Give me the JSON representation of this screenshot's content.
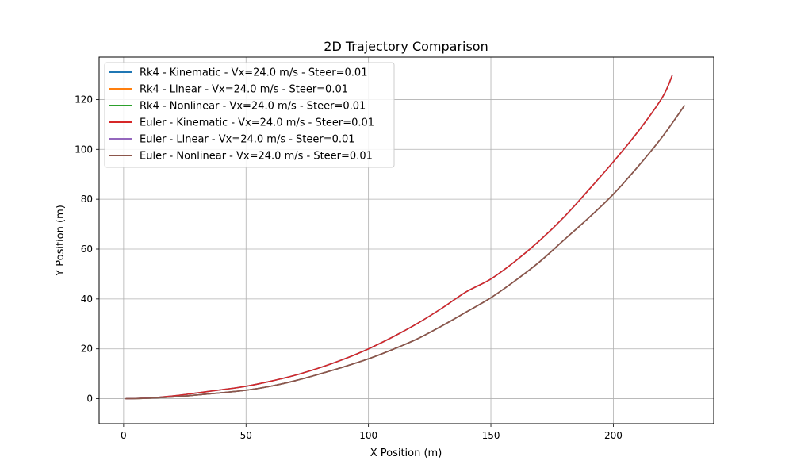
{
  "chart_data": {
    "type": "line",
    "title": "2D Trajectory Comparison",
    "xlabel": "X Position (m)",
    "ylabel": "Y Position (m)",
    "xlim": [
      -10,
      241
    ],
    "ylim": [
      -10,
      137
    ],
    "xticks": [
      0,
      50,
      100,
      150,
      200
    ],
    "yticks": [
      0,
      20,
      40,
      60,
      80,
      100,
      120
    ],
    "grid": true,
    "legend_position": "top-left",
    "series": [
      {
        "name": "Rk4 - Kinematic - Vx=24.0 m/s - Steer=0.01",
        "color": "#1f77b4",
        "x": [
          1,
          10,
          20,
          30,
          40,
          50,
          60,
          70,
          80,
          90,
          100,
          110,
          120,
          130,
          140,
          150,
          160,
          170,
          180,
          190,
          200,
          210,
          220,
          224
        ],
        "y": [
          0,
          0.3,
          1.1,
          2.3,
          3.6,
          5.0,
          7.0,
          9.4,
          12.4,
          15.9,
          20.0,
          24.8,
          30.2,
          36.3,
          42.9,
          48.0,
          55.2,
          63.5,
          73.0,
          83.8,
          95.0,
          107.0,
          120.8,
          129.5
        ]
      },
      {
        "name": "Rk4 - Linear - Vx=24.0 m/s - Steer=0.01",
        "color": "#ff7f0e",
        "x": [
          1,
          10,
          20,
          30,
          40,
          50,
          60,
          70,
          80,
          90,
          100,
          110,
          120,
          130,
          140,
          150,
          160,
          170,
          180,
          190,
          200,
          210,
          220,
          229
        ],
        "y": [
          0,
          0.2,
          0.7,
          1.5,
          2.4,
          3.4,
          5.0,
          7.2,
          9.9,
          12.8,
          16.0,
          19.8,
          24.0,
          29.2,
          34.8,
          40.5,
          47.4,
          55.0,
          63.8,
          72.6,
          82.0,
          93.0,
          105.0,
          117.5
        ]
      },
      {
        "name": "Rk4 - Nonlinear - Vx=24.0 m/s - Steer=0.01",
        "color": "#2ca02c",
        "x": [
          1,
          10,
          20,
          30,
          40,
          50,
          60,
          70,
          80,
          90,
          100,
          110,
          120,
          130,
          140,
          150,
          160,
          170,
          180,
          190,
          200,
          210,
          220,
          229
        ],
        "y": [
          0,
          0.2,
          0.7,
          1.5,
          2.4,
          3.4,
          5.0,
          7.2,
          9.9,
          12.8,
          16.0,
          19.8,
          24.0,
          29.2,
          34.8,
          40.5,
          47.4,
          55.0,
          63.8,
          72.6,
          82.0,
          93.0,
          105.0,
          117.5
        ]
      },
      {
        "name": "Euler - Kinematic - Vx=24.0 m/s - Steer=0.01",
        "color": "#d62728",
        "x": [
          1,
          10,
          20,
          30,
          40,
          50,
          60,
          70,
          80,
          90,
          100,
          110,
          120,
          130,
          140,
          150,
          160,
          170,
          180,
          190,
          200,
          210,
          220,
          224
        ],
        "y": [
          0,
          0.3,
          1.1,
          2.3,
          3.6,
          5.0,
          7.0,
          9.4,
          12.4,
          15.9,
          20.0,
          24.8,
          30.2,
          36.3,
          42.9,
          48.0,
          55.2,
          63.5,
          73.0,
          83.8,
          95.0,
          107.0,
          120.8,
          129.5
        ]
      },
      {
        "name": "Euler - Linear - Vx=24.0 m/s - Steer=0.01",
        "color": "#9467bd",
        "x": [
          1,
          10,
          20,
          30,
          40,
          50,
          60,
          70,
          80,
          90,
          100,
          110,
          120,
          130,
          140,
          150,
          160,
          170,
          180,
          190,
          200,
          210,
          220,
          229
        ],
        "y": [
          0,
          0.2,
          0.7,
          1.5,
          2.4,
          3.4,
          5.0,
          7.2,
          9.9,
          12.8,
          16.0,
          19.8,
          24.0,
          29.2,
          34.8,
          40.5,
          47.4,
          55.0,
          63.8,
          72.6,
          82.0,
          93.0,
          105.0,
          117.5
        ]
      },
      {
        "name": "Euler - Nonlinear - Vx=24.0 m/s - Steer=0.01",
        "color": "#8c564b",
        "x": [
          1,
          10,
          20,
          30,
          40,
          50,
          60,
          70,
          80,
          90,
          100,
          110,
          120,
          130,
          140,
          150,
          160,
          170,
          180,
          190,
          200,
          210,
          220,
          229
        ],
        "y": [
          0,
          0.2,
          0.7,
          1.5,
          2.4,
          3.4,
          5.0,
          7.2,
          9.9,
          12.8,
          16.0,
          19.8,
          24.0,
          29.2,
          34.8,
          40.5,
          47.4,
          55.0,
          63.8,
          72.6,
          82.0,
          93.0,
          105.0,
          117.5
        ]
      }
    ]
  }
}
